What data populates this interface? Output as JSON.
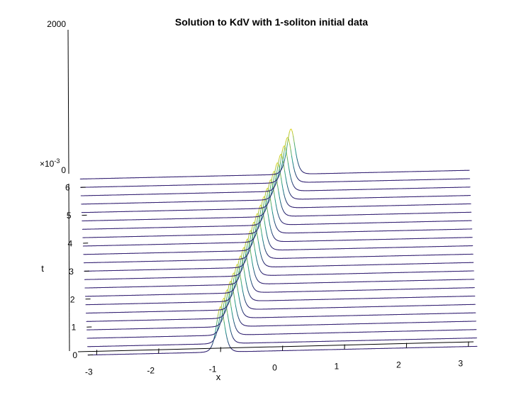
{
  "chart_data": {
    "type": "waterfall",
    "title": "Solution to KdV with 1-soliton initial data",
    "xlabel": "x",
    "ylabel": "t",
    "zlabel": "",
    "t_exponent_label": "×10",
    "t_exponent": "-3",
    "xlim": [
      -3.14,
      3.14
    ],
    "ylim": [
      0,
      0.0066
    ],
    "zlim": [
      0,
      2000
    ],
    "x_ticks": [
      "-3",
      "-2",
      "-1",
      "0",
      "1",
      "2",
      "3"
    ],
    "x_tick_values": [
      -3,
      -2,
      -1,
      0,
      1,
      2,
      3
    ],
    "t_ticks": [
      "0",
      "1",
      "2",
      "3",
      "4",
      "5",
      "6"
    ],
    "t_tick_values": [
      0,
      1,
      2,
      3,
      4,
      5,
      6
    ],
    "z_ticks": [
      "0",
      "2000"
    ],
    "t_values_e3": [
      0,
      0.3,
      0.6,
      0.9,
      1.2,
      1.5,
      1.8,
      2.1,
      2.4,
      2.7,
      3.0,
      3.3,
      3.6,
      3.9,
      4.2,
      4.5,
      4.8,
      5.1,
      5.4,
      5.7,
      6.0,
      6.3
    ],
    "soliton": {
      "amplitude": 625,
      "initial_position": -1.0,
      "speed_per_e3": 0.2,
      "width": 0.087
    },
    "colors": {
      "low": "#2e1a6e",
      "mid": "#1e9a8a",
      "high": "#e6d824",
      "axis": "#000000"
    }
  }
}
